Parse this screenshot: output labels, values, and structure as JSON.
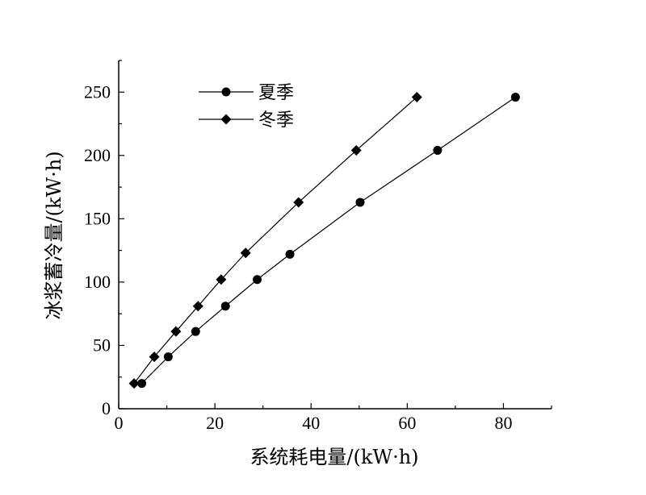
{
  "chart_data": {
    "type": "line",
    "xlabel": "系统耗电量/(kW·h)",
    "ylabel": "冰浆蓄冷量/(kW·h)",
    "xlim": [
      0,
      90
    ],
    "ylim": [
      0,
      275
    ],
    "xticks": [
      0,
      20,
      40,
      60,
      80
    ],
    "yticks": [
      0,
      50,
      100,
      150,
      200,
      250
    ],
    "grid": false,
    "legend_position": "top-left",
    "series": [
      {
        "name": "夏季",
        "marker": "circle",
        "color": "#000000",
        "x": [
          4.8,
          10.3,
          16.0,
          22.2,
          28.8,
          35.6,
          50.2,
          66.3,
          82.5
        ],
        "y": [
          20,
          41,
          61,
          81,
          102,
          122,
          163,
          204,
          246
        ]
      },
      {
        "name": "冬季",
        "marker": "diamond",
        "color": "#000000",
        "x": [
          3.2,
          7.4,
          11.9,
          16.5,
          21.3,
          26.4,
          37.4,
          49.4,
          62.0
        ],
        "y": [
          20,
          41,
          61,
          81,
          102,
          123,
          163,
          204,
          246
        ]
      }
    ]
  }
}
